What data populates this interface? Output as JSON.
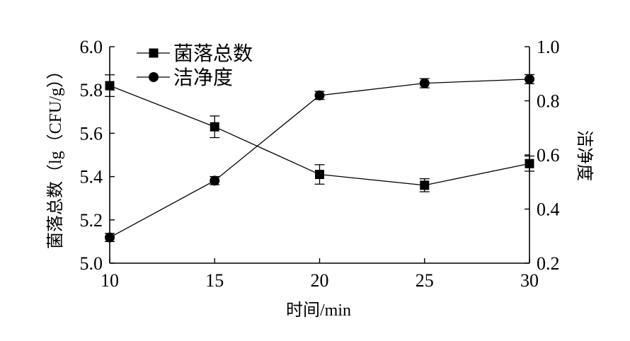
{
  "chart_data": {
    "type": "line",
    "xlabel": "时间/min",
    "ylabel_left": "菌落总数（lg（CFU/g））",
    "ylabel_right": "洁净度",
    "x": [
      10,
      15,
      20,
      25,
      30
    ],
    "xlim": [
      10,
      30
    ],
    "ylim_left": [
      5.0,
      6.0
    ],
    "ylim_right": [
      0.2,
      1.0
    ],
    "x_ticks": [
      "10",
      "15",
      "20",
      "25",
      "30"
    ],
    "y_ticks_left": [
      "5.0",
      "5.2",
      "5.4",
      "5.6",
      "5.8",
      "6.0"
    ],
    "y_ticks_right": [
      "0.2",
      "0.4",
      "0.6",
      "0.8",
      "1.0"
    ],
    "legend_position": "top-left",
    "grid": false,
    "series": [
      {
        "name": "菌落总数",
        "axis": "left",
        "marker": "square",
        "values": [
          5.82,
          5.63,
          5.41,
          5.36,
          5.46
        ],
        "error": [
          0.05,
          0.05,
          0.045,
          0.03,
          0.035
        ]
      },
      {
        "name": "洁净度",
        "axis": "right",
        "marker": "circle",
        "values": [
          0.295,
          0.505,
          0.82,
          0.865,
          0.88
        ],
        "error": [
          0.015,
          0.015,
          0.015,
          0.017,
          0.017
        ]
      }
    ]
  }
}
